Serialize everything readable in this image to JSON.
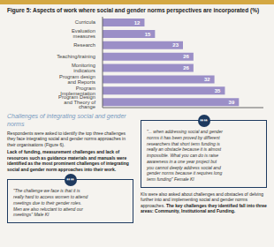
{
  "chart_data": {
    "type": "bar",
    "title": "Figure 5: Aspects of work where social and gender norms perspectives are incorporated (%)",
    "categories": [
      "Curricula",
      "Evaluation measures",
      "Research",
      "Teaching/training",
      "Monitoring indicators",
      "Program design and Reports",
      "Program Implementation",
      "Program Design and Theory of change"
    ],
    "values": [
      12,
      15,
      23,
      26,
      26,
      32,
      35,
      39
    ],
    "color": "#9b8fc7",
    "orientation": "horizontal",
    "xlim": [
      0,
      46
    ],
    "grid": false,
    "data_labels": true,
    "tick_labels": "y",
    "annotations": [
      "Challenges of integrating social and gender\nnorms",
      "Respondents were asked to identify the top three challenges they face integrating social and gender norms approaches in their organisations (Figure 6). ",
      "Lack of funding, measurement challenges and lack of resources such as guidance materials and manuals were identified as the most prominent challenges of integrating social and gender norm approaches into their work.",
      "\"The challenge we face is that it is\nreally hard to access women to attend\nmeetings due to their gender roles.\nMen are also reluctant to attend our\nmeetings\" Male KI",
      "\"... when addressing social and gender\nnorms it has been proved by different\nresearchers that short term funding is\nreally an obstacle because it is almost\nimpossible. What you can do is raise\nawareness in a one year project but\nyou cannot deeply address social and\ngender norms because it requires long\nterm funding\" Female KI",
      "KIs were also asked about challenges and obstacles of delving further into and implementing social and gender norms approaches. ",
      "The key challenges they identified fall into three areas: Community, Institutional and Funding.",
      "““"
    ]
  }
}
